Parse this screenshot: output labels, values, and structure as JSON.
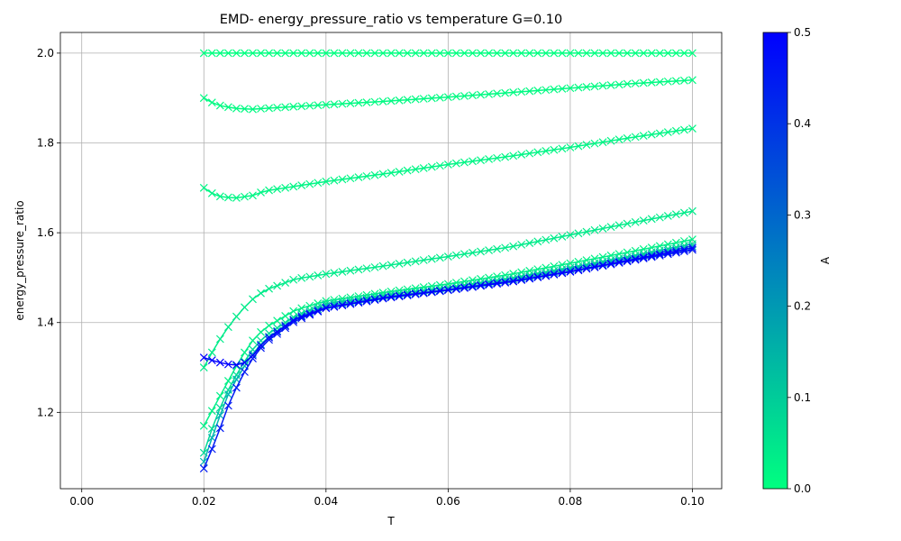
{
  "chart_data": {
    "type": "line",
    "title": "EMD- energy_pressure_ratio vs temperature G=0.10",
    "xlabel": "T",
    "ylabel": "energy_pressure_ratio",
    "xlim": [
      -0.0035,
      0.1048
    ],
    "ylim": [
      1.03,
      2.046
    ],
    "xticks": [
      "0.00",
      "0.02",
      "0.04",
      "0.06",
      "0.08",
      "0.10"
    ],
    "yticks": [
      "1.2",
      "1.4",
      "1.6",
      "1.8",
      "2.0"
    ],
    "grid": true,
    "marker": "x",
    "colorbar": {
      "label": "A",
      "range": [
        0.0,
        0.5
      ],
      "ticks": [
        "0.0",
        "0.1",
        "0.2",
        "0.3",
        "0.4",
        "0.5"
      ],
      "colormap": "winter",
      "color_low": "#00ff80",
      "color_high": "#0000ff"
    },
    "x_range": [
      0.02,
      0.1
    ],
    "points_per_series": 61,
    "series": [
      {
        "A": 0.0,
        "color": "#00ff80",
        "x": [
          0.02,
          0.025,
          0.03,
          0.04,
          0.05,
          0.06,
          0.07,
          0.08,
          0.09,
          0.1
        ],
        "y": [
          2.0,
          2.0,
          2.0,
          2.0,
          2.0,
          2.0,
          2.0,
          2.0,
          2.0,
          2.0
        ]
      },
      {
        "A": 0.02,
        "color": "#00fa82",
        "x": [
          0.02,
          0.022,
          0.025,
          0.028,
          0.03,
          0.04,
          0.05,
          0.06,
          0.07,
          0.08,
          0.09,
          0.1
        ],
        "y": [
          1.9,
          1.885,
          1.877,
          1.875,
          1.877,
          1.885,
          1.893,
          1.902,
          1.912,
          1.922,
          1.932,
          1.94
        ]
      },
      {
        "A": 0.04,
        "color": "#00f585",
        "x": [
          0.02,
          0.022,
          0.025,
          0.028,
          0.03,
          0.04,
          0.05,
          0.06,
          0.07,
          0.08,
          0.09,
          0.1
        ],
        "y": [
          1.7,
          1.682,
          1.677,
          1.683,
          1.693,
          1.714,
          1.732,
          1.752,
          1.77,
          1.79,
          1.812,
          1.832
        ]
      },
      {
        "A": 0.06,
        "color": "#00f087",
        "x": [
          0.02,
          0.022,
          0.024,
          0.026,
          0.028,
          0.03,
          0.035,
          0.04,
          0.05,
          0.06,
          0.07,
          0.08,
          0.09,
          0.1
        ],
        "y": [
          1.17,
          1.22,
          1.27,
          1.32,
          1.36,
          1.388,
          1.428,
          1.448,
          1.468,
          1.486,
          1.507,
          1.532,
          1.558,
          1.585
        ]
      },
      {
        "A": 0.08,
        "color": "#00eb8a",
        "x": [
          0.02,
          0.022,
          0.024,
          0.026,
          0.028,
          0.03,
          0.035,
          0.04,
          0.05,
          0.06,
          0.07,
          0.08,
          0.09,
          0.1
        ],
        "y": [
          1.3,
          1.35,
          1.39,
          1.425,
          1.452,
          1.472,
          1.497,
          1.508,
          1.527,
          1.547,
          1.568,
          1.595,
          1.622,
          1.648
        ]
      },
      {
        "A": 0.15,
        "color": "#00d996",
        "x": [
          0.02,
          0.022,
          0.024,
          0.026,
          0.028,
          0.03,
          0.035,
          0.04,
          0.05,
          0.06,
          0.07,
          0.08,
          0.09,
          0.1
        ],
        "y": [
          1.11,
          1.19,
          1.25,
          1.3,
          1.34,
          1.37,
          1.415,
          1.442,
          1.462,
          1.478,
          1.498,
          1.522,
          1.548,
          1.575
        ]
      },
      {
        "A": 0.3,
        "color": "#00b3b3",
        "x": [
          0.02,
          0.022,
          0.024,
          0.026,
          0.028,
          0.03,
          0.035,
          0.04,
          0.05,
          0.06,
          0.07,
          0.08,
          0.09,
          0.1
        ],
        "y": [
          1.09,
          1.17,
          1.24,
          1.29,
          1.33,
          1.362,
          1.41,
          1.437,
          1.458,
          1.474,
          1.494,
          1.518,
          1.544,
          1.57
        ]
      },
      {
        "A": 0.45,
        "color": "#0019f3",
        "x": [
          0.02,
          0.022,
          0.024,
          0.026,
          0.028,
          0.03,
          0.035,
          0.04,
          0.05,
          0.06,
          0.07,
          0.08,
          0.09,
          0.1
        ],
        "y": [
          1.075,
          1.14,
          1.215,
          1.275,
          1.32,
          1.355,
          1.404,
          1.432,
          1.455,
          1.472,
          1.49,
          1.513,
          1.538,
          1.562
        ]
      },
      {
        "A": 0.5,
        "color": "#0000ff",
        "x": [
          0.02,
          0.022,
          0.024,
          0.026,
          0.0275,
          0.03,
          0.035,
          0.04,
          0.05,
          0.06,
          0.07,
          0.08,
          0.09,
          0.1
        ],
        "y": [
          1.322,
          1.313,
          1.307,
          1.305,
          1.318,
          1.36,
          1.408,
          1.433,
          1.456,
          1.473,
          1.491,
          1.514,
          1.54,
          1.566
        ]
      }
    ]
  }
}
